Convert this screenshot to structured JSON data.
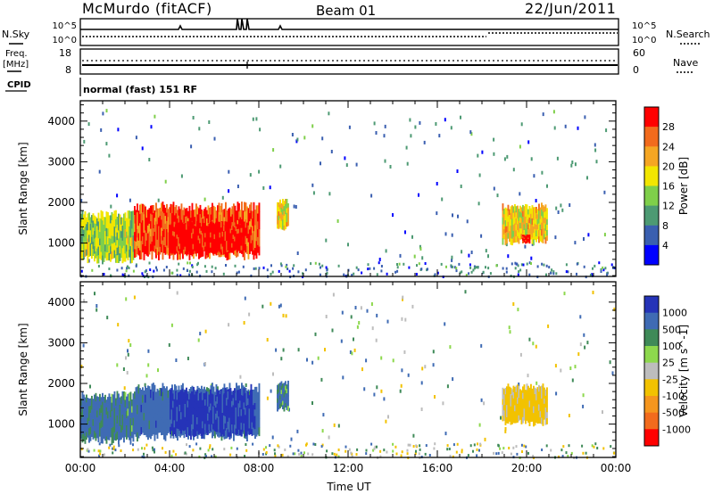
{
  "header": {
    "station": "McMurdo (fitACF)",
    "beam": "Beam 01",
    "date": "22/Jun/2011"
  },
  "top_panels": {
    "nsky_label": "N.Sky",
    "nsearch_label": "N.Search",
    "freq_label_line1": "Freq.",
    "freq_label_line2": "[MHz]",
    "nave_label": "Nave",
    "cpid_label": "CPID",
    "cpid_text": "normal (fast) 151 RF",
    "noise_left_ticks": [
      "10^5",
      "10^0"
    ],
    "noise_right_ticks": [
      "10^5",
      "10^0"
    ],
    "freq_ticks": [
      "18",
      "8"
    ],
    "nave_ticks": [
      "60",
      "0"
    ]
  },
  "colors": {
    "power_scale": [
      "#0000ff",
      "#3a5fb0",
      "#4d9a73",
      "#7fcf4a",
      "#f2e600",
      "#f5a623",
      "#f26b1d",
      "#ff0000"
    ],
    "velocity_scale": [
      "#2533b8",
      "#3f6bb4",
      "#3f8a58",
      "#8dd84d",
      "#bdbdbd",
      "#f2c200",
      "#f5961e",
      "#f26b1d",
      "#ff0000"
    ]
  },
  "chart_data": [
    {
      "type": "heatmap",
      "title": "Power",
      "xlabel": "",
      "ylabel": "Slant Range [km]",
      "x_tick_labels": [
        "00:00",
        "04:00",
        "08:00",
        "12:00",
        "16:00",
        "20:00",
        "00:00"
      ],
      "xlim": [
        0,
        24
      ],
      "ylim": [
        180,
        4500
      ],
      "y_ticks": [
        1000,
        2000,
        3000,
        4000
      ],
      "colorbar_label": "Power [dB]",
      "colorbar_ticks": [
        "4",
        "8",
        "12",
        "16",
        "20",
        "24",
        "28"
      ],
      "colorbar_range": [
        0,
        30
      ],
      "echo_regions": [
        {
          "t0": 0.0,
          "t1": 2.4,
          "r0": 550,
          "r1": 1750,
          "value": 14
        },
        {
          "t0": 2.4,
          "t1": 8.0,
          "r0": 650,
          "r1": 1950,
          "value": 26
        },
        {
          "t0": 4.0,
          "t1": 7.2,
          "r0": 750,
          "r1": 1500,
          "value": 30
        },
        {
          "t0": 8.8,
          "t1": 9.3,
          "r0": 1350,
          "r1": 2050,
          "value": 18
        },
        {
          "t0": 18.9,
          "t1": 20.9,
          "r0": 1000,
          "r1": 1950,
          "value": 18
        },
        {
          "t0": 19.8,
          "t1": 20.1,
          "r0": 1000,
          "r1": 1200,
          "value": 30
        }
      ]
    },
    {
      "type": "heatmap",
      "title": "Velocity",
      "xlabel": "Time UT",
      "ylabel": "Slant Range [km]",
      "x_tick_labels": [
        "00:00",
        "04:00",
        "08:00",
        "12:00",
        "16:00",
        "20:00",
        "00:00"
      ],
      "xlim": [
        0,
        24
      ],
      "ylim": [
        180,
        4500
      ],
      "y_ticks": [
        1000,
        2000,
        3000,
        4000
      ],
      "colorbar_label": "Velocity [m s^-1]",
      "colorbar_ticks": [
        "1000",
        "500",
        "100",
        "25",
        "-25",
        "-100",
        "-500",
        "-1000"
      ],
      "echo_regions": [
        {
          "t0": 0.0,
          "t1": 2.4,
          "r0": 550,
          "r1": 1750,
          "value": 150
        },
        {
          "t0": 2.4,
          "t1": 8.0,
          "r0": 650,
          "r1": 1950,
          "value": 300
        },
        {
          "t0": 4.0,
          "t1": 7.8,
          "r0": 750,
          "r1": 1850,
          "value": 800
        },
        {
          "t0": 8.8,
          "t1": 9.3,
          "r0": 1350,
          "r1": 2050,
          "value": 150
        },
        {
          "t0": 18.9,
          "t1": 20.9,
          "r0": 1000,
          "r1": 1950,
          "value": -200
        }
      ]
    }
  ]
}
